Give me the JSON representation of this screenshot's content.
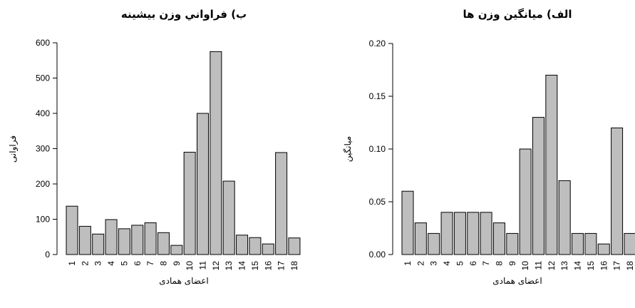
{
  "chart_data": [
    {
      "type": "bar",
      "title": "ب) فراواني وزن بيشينه",
      "xlabel": "اعضای همادی",
      "ylabel": "فراوانی",
      "categories": [
        "1",
        "2",
        "3",
        "4",
        "5",
        "6",
        "7",
        "8",
        "9",
        "10",
        "11",
        "12",
        "13",
        "14",
        "15",
        "16",
        "17",
        "18"
      ],
      "values": [
        137,
        80,
        58,
        99,
        73,
        83,
        90,
        62,
        26,
        290,
        400,
        575,
        208,
        55,
        48,
        30,
        289,
        47
      ],
      "ylim": [
        0,
        600
      ],
      "yticks": [
        "0",
        "100",
        "200",
        "300",
        "400",
        "500",
        "600"
      ],
      "grid": false
    },
    {
      "type": "bar",
      "title": "الف) میانگین وزن ها",
      "xlabel": "اعضای همادی",
      "ylabel": "میانگین",
      "categories": [
        "1",
        "2",
        "3",
        "4",
        "5",
        "6",
        "7",
        "8",
        "9",
        "10",
        "11",
        "12",
        "13",
        "14",
        "15",
        "16",
        "17",
        "18"
      ],
      "values": [
        0.06,
        0.03,
        0.02,
        0.04,
        0.04,
        0.04,
        0.04,
        0.03,
        0.02,
        0.1,
        0.13,
        0.17,
        0.07,
        0.02,
        0.02,
        0.01,
        0.12,
        0.02
      ],
      "ylim": [
        0,
        0.2
      ],
      "yticks": [
        "0.00",
        "0.05",
        "0.10",
        "0.15",
        "0.20"
      ],
      "grid": false
    }
  ]
}
